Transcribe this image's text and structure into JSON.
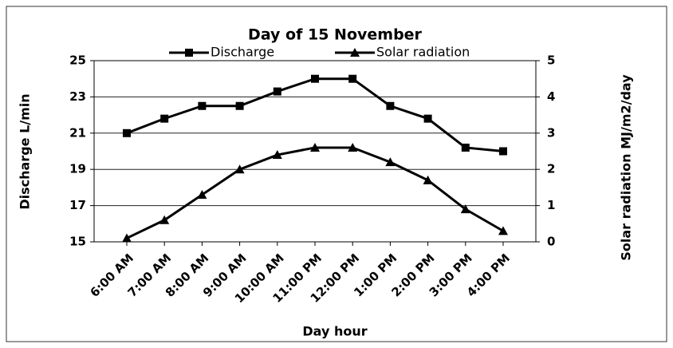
{
  "chart_data": {
    "type": "line",
    "title": "Day of 15 November",
    "xlabel": "Day hour",
    "ylabel": "Discharge L/min",
    "y2label": "Solar radiation MJ/m2/day",
    "categories": [
      "6:00 AM",
      "7:00 AM",
      "8:00 AM",
      "9:00 AM",
      "10:00 AM",
      "11:00 PM",
      "12:00 PM",
      "1:00 PM",
      "2:00 PM",
      "3:00 PM",
      "4:00 PM"
    ],
    "series": [
      {
        "name": "Discharge",
        "color": "#000000",
        "marker": "square",
        "values": [
          21,
          21.8,
          22.5,
          22.5,
          23.3,
          24,
          24,
          22.5,
          21.8,
          20.2,
          20
        ]
      },
      {
        "name": "Solar radiation",
        "color": "#000000",
        "marker": "triangle",
        "axis": "y2",
        "values": [
          0.1,
          0.6,
          1.3,
          2.0,
          2.4,
          2.6,
          2.6,
          2.2,
          1.7,
          0.9,
          0.3
        ]
      }
    ],
    "ylim": [
      15,
      25
    ],
    "yticks": [
      15,
      17,
      19,
      21,
      23,
      25
    ],
    "y2lim": [
      0,
      5
    ],
    "y2ticks": [
      0,
      1,
      2,
      3,
      4,
      5
    ],
    "grid": true,
    "legend": "top"
  }
}
